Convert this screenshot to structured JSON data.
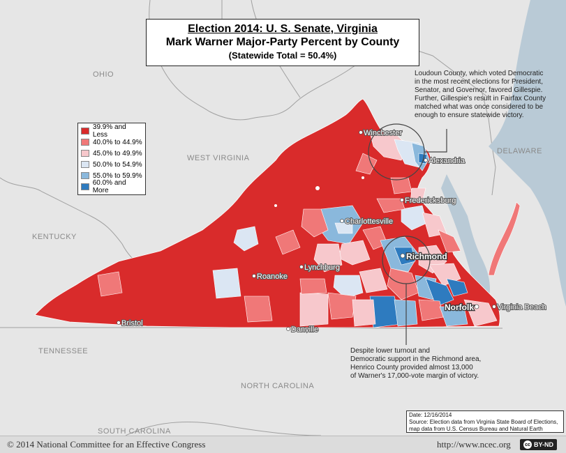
{
  "title": {
    "line1": "Election 2014: U. S. Senate, Virginia",
    "line2": "Mark Warner Major-Party Percent by County",
    "line3": "(Statewide Total = 50.4%)"
  },
  "legend": [
    {
      "label": "39.9% and Less",
      "color": "#d92b2b"
    },
    {
      "label": "40.0% to 44.9%",
      "color": "#f07878"
    },
    {
      "label": "45.0% to 49.9%",
      "color": "#f7c8cc"
    },
    {
      "label": "50.0% to 54.9%",
      "color": "#dbe6f3"
    },
    {
      "label": "55.0% to 59.9%",
      "color": "#8ab8dc"
    },
    {
      "label": "60.0% and More",
      "color": "#2e7bbf"
    }
  ],
  "states": {
    "ohio": "OHIO",
    "west_virginia": "WEST VIRGINIA",
    "kentucky": "KENTUCKY",
    "tennessee": "TENNESSEE",
    "north_carolina": "NORTH CAROLINA",
    "south_carolina": "SOUTH CAROLINA",
    "delaware": "DELAWARE"
  },
  "cities": {
    "winchester": "Winchester",
    "alexandria": "Alexandria",
    "fredericksburg": "Fredericksburg",
    "charlottesville": "Charlottesville",
    "richmond": "Richmond",
    "lynchburg": "Lynchburg",
    "roanoke": "Roanoke",
    "norfolk": "Norfolk",
    "virginia_beach": "Virginia Beach",
    "bristol": "Bristol",
    "danville": "Danville"
  },
  "annotations": {
    "loudoun": [
      "Loudoun County, which voted Democratic",
      "in the most recent elections for President,",
      "Senator, and Governor, favored Gillespie.",
      "Further, Gillespie's result in Fairfax County",
      "matched what was once considered to be",
      "enough to ensure statewide victory."
    ],
    "richmond": [
      "Despite lower turnout and",
      "Democratic support in the Richmond area,",
      "Henrico County provided almost 13,000",
      "of Warner's 17,000-vote margin of victory."
    ]
  },
  "note": {
    "date": "Date: 12/16/2014",
    "source1": "Source: Election data from Virginia State Board of Elections,",
    "source2": "map data from U.S. Census Bureau and Natural Earth"
  },
  "footer": {
    "copyright": "© 2014 National Committee for an Effective Congress",
    "website": "http://www.ncec.org",
    "license": "BY-ND",
    "license_icon": "cc-icon"
  },
  "colors": {
    "water": "#b9cad6",
    "land": "#e6e6e6",
    "border": "#a0a0a0"
  }
}
